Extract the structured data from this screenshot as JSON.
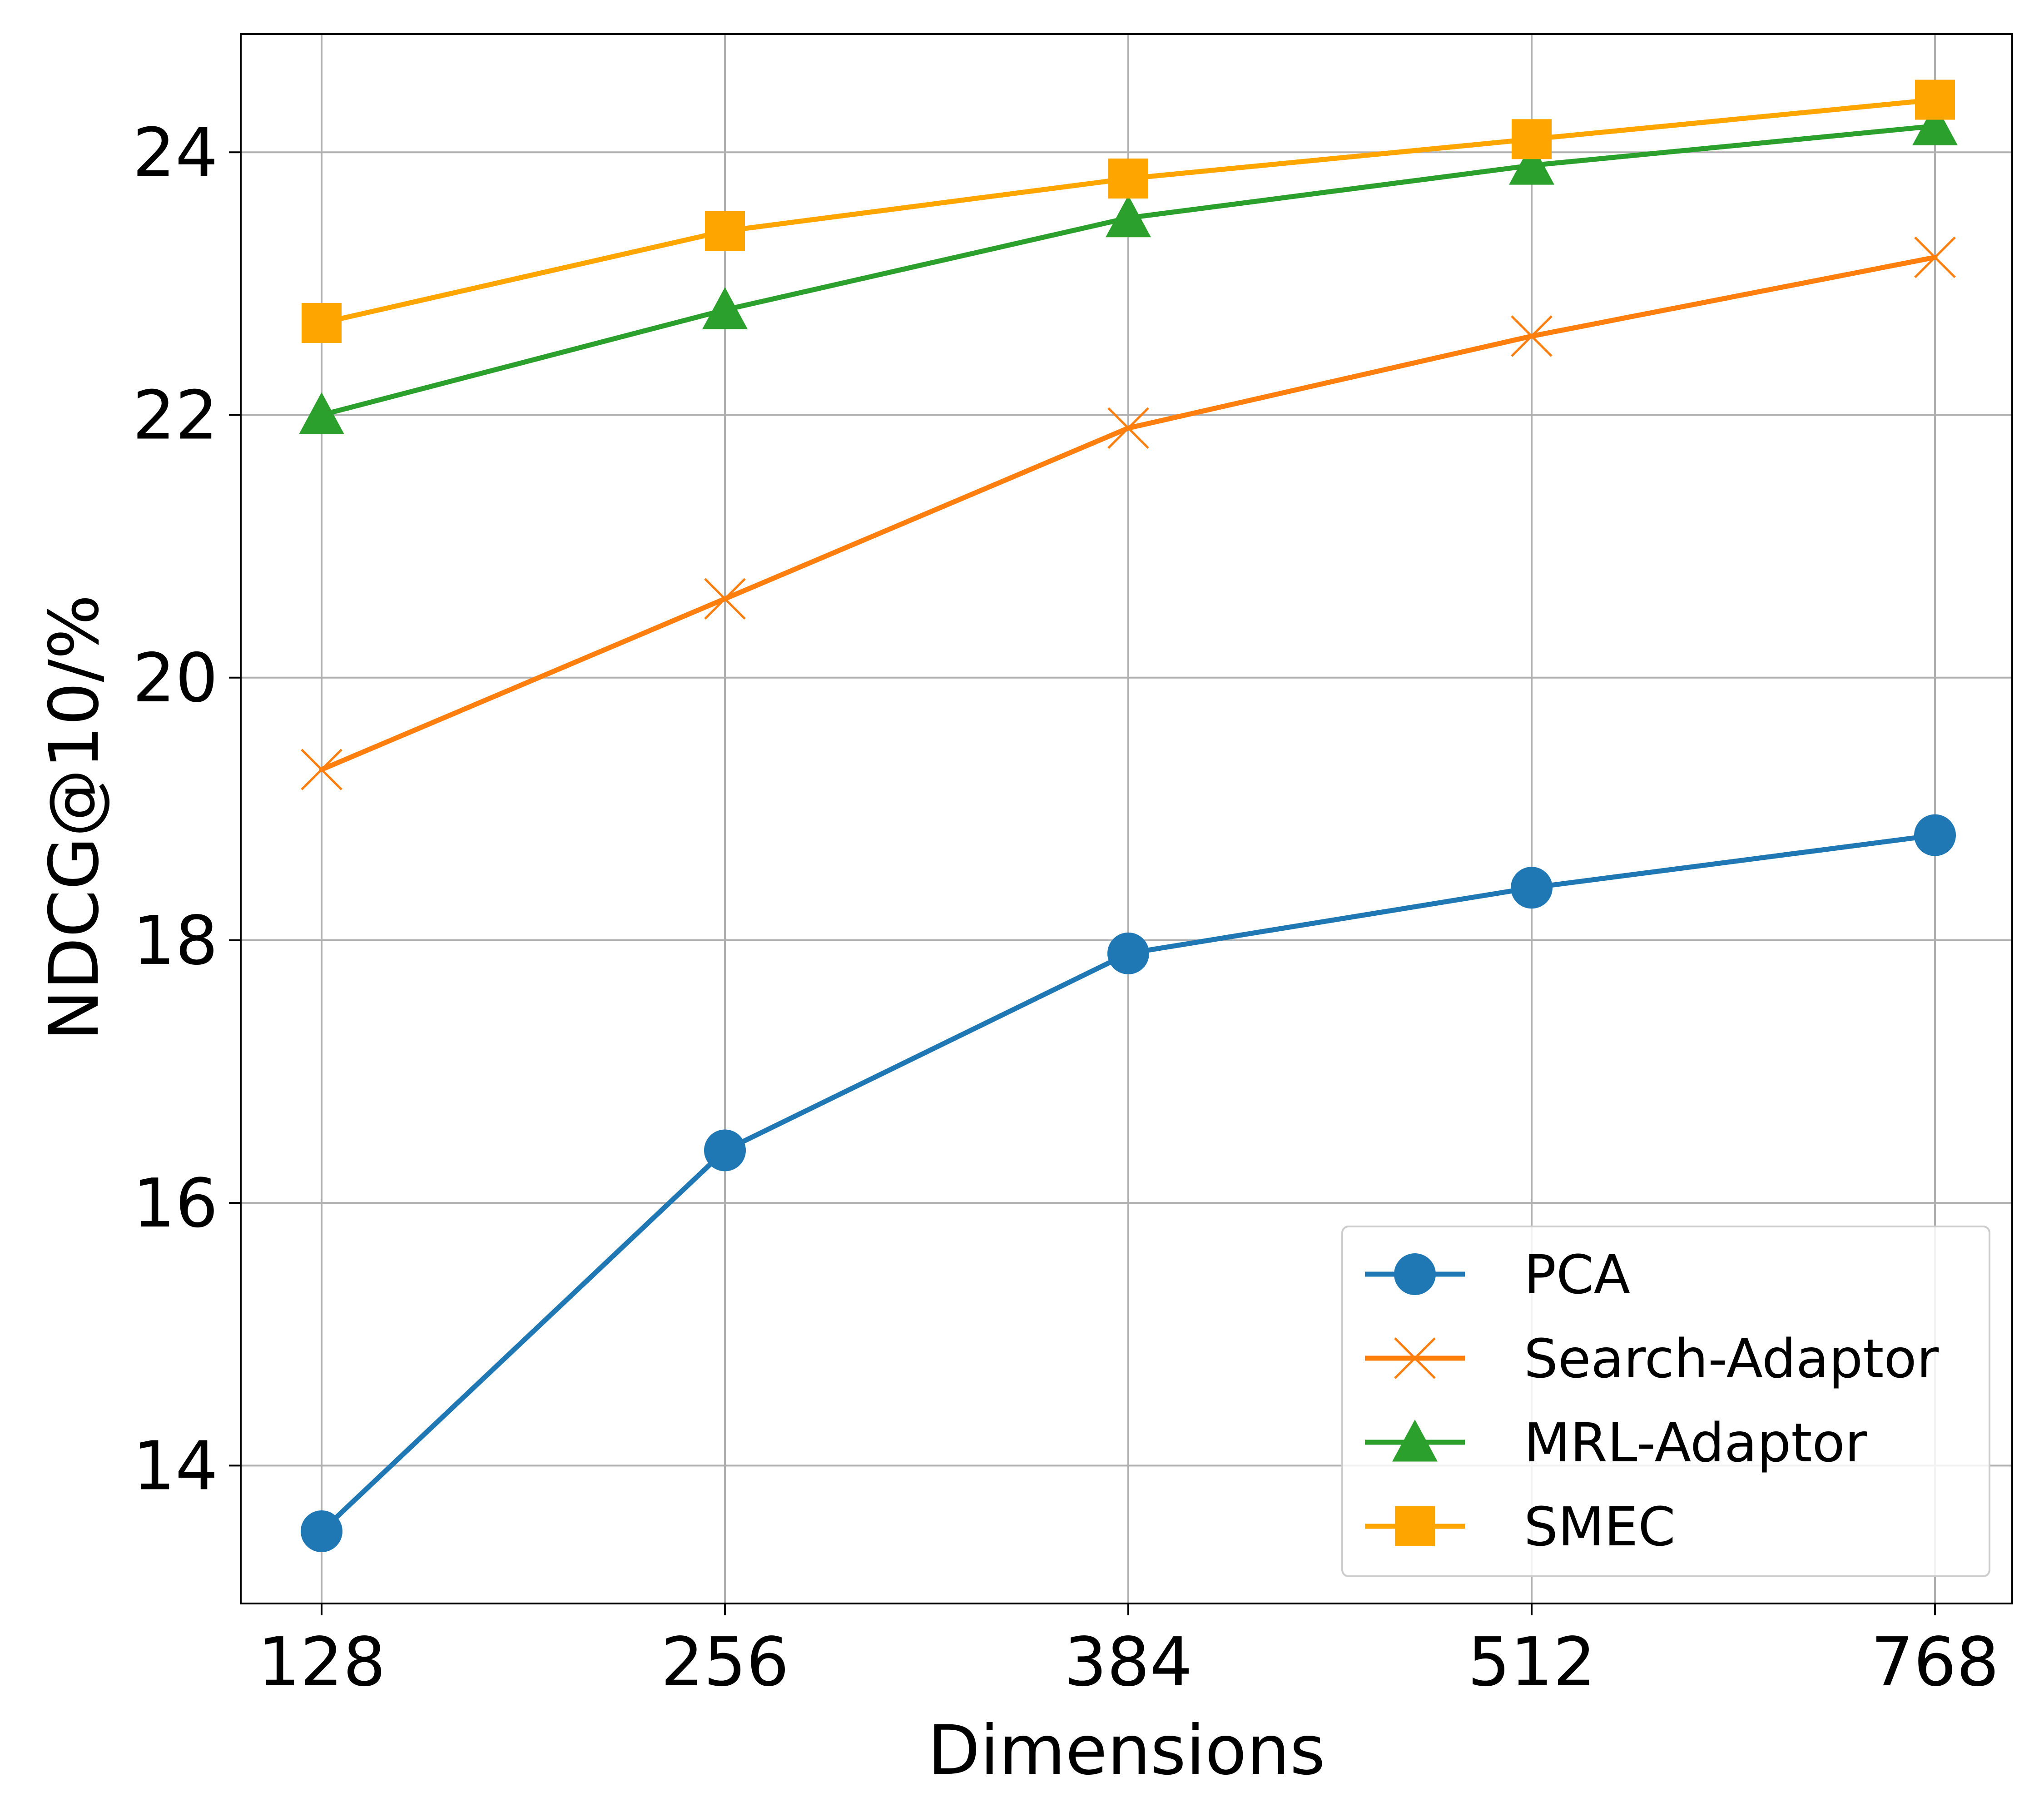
{
  "chart_data": {
    "type": "line",
    "title": "",
    "xlabel": "Dimensions",
    "ylabel": "NDCG@10/%",
    "categories": [
      "128",
      "256",
      "384",
      "512",
      "768"
    ],
    "ylim": [
      12.95,
      24.9
    ],
    "yticks": [
      14,
      16,
      18,
      20,
      22,
      24
    ],
    "grid": true,
    "legend_position": "bottom-right",
    "series": [
      {
        "name": "PCA",
        "color": "#1f77b4",
        "marker": "circle",
        "values": [
          13.5,
          16.4,
          17.9,
          18.4,
          18.8
        ]
      },
      {
        "name": "Search-Adaptor",
        "color": "#ff7f0e",
        "marker": "x",
        "values": [
          19.3,
          20.6,
          21.9,
          22.6,
          23.2
        ]
      },
      {
        "name": "MRL-Adaptor",
        "color": "#2ca02c",
        "marker": "triangle",
        "values": [
          22.0,
          22.8,
          23.5,
          23.9,
          24.2
        ]
      },
      {
        "name": "SMEC",
        "color": "#ffa500",
        "marker": "square",
        "values": [
          22.7,
          23.4,
          23.8,
          24.1,
          24.4
        ]
      }
    ]
  }
}
